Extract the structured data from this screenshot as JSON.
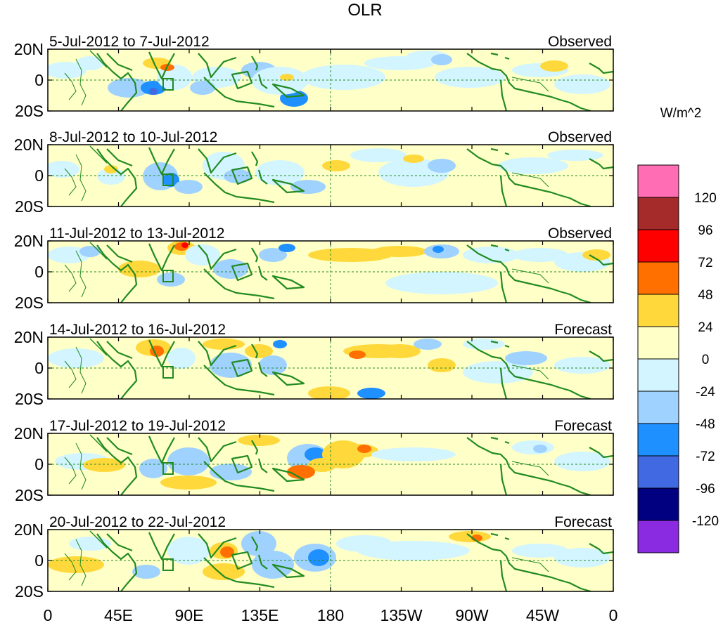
{
  "title": "OLR",
  "units": "W/m^2",
  "lat_labels": [
    "20N",
    "0",
    "20S"
  ],
  "lon_labels": [
    "0",
    "45E",
    "90E",
    "135E",
    "180",
    "135W",
    "90W",
    "45W",
    "0"
  ],
  "panels": [
    {
      "date_range": "5-Jul-2012 to 7-Jul-2012",
      "kind": "Observed"
    },
    {
      "date_range": "8-Jul-2012 to 10-Jul-2012",
      "kind": "Observed"
    },
    {
      "date_range": "11-Jul-2012 to 13-Jul-2012",
      "kind": "Observed"
    },
    {
      "date_range": "14-Jul-2012 to 16-Jul-2012",
      "kind": "Forecast"
    },
    {
      "date_range": "17-Jul-2012 to 19-Jul-2012",
      "kind": "Forecast"
    },
    {
      "date_range": "20-Jul-2012 to 22-Jul-2012",
      "kind": "Forecast"
    }
  ],
  "colorbar": {
    "labels": [
      "120",
      "96",
      "72",
      "48",
      "24",
      "0",
      "-24",
      "-48",
      "-72",
      "-96",
      "-120"
    ],
    "colors": [
      "#ff6eb4",
      "#a52a2a",
      "#ff0000",
      "#ff7000",
      "#ffd93b",
      "#ffffc8",
      "#d2f5ff",
      "#a0d2ff",
      "#1e90ff",
      "#4169e1",
      "#000080",
      "#8a2be2"
    ]
  },
  "colors": {
    "land": "#228b22",
    "background": "#fffdd0"
  }
}
